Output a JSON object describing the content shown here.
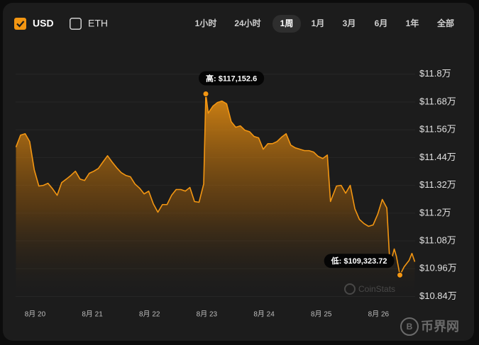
{
  "controls": {
    "currencies": [
      {
        "label": "USD",
        "checked": true
      },
      {
        "label": "ETH",
        "checked": false
      }
    ],
    "ranges": [
      {
        "label": "1小时",
        "selected": false
      },
      {
        "label": "24小时",
        "selected": false
      },
      {
        "label": "1周",
        "selected": true
      },
      {
        "label": "1月",
        "selected": false
      },
      {
        "label": "3月",
        "selected": false
      },
      {
        "label": "6月",
        "selected": false
      },
      {
        "label": "1年",
        "selected": false
      },
      {
        "label": "全部",
        "selected": false
      }
    ]
  },
  "watermarks": [
    "CoinStats",
    "币界网"
  ],
  "chart_data": {
    "type": "line",
    "grid": true,
    "annotations": {
      "high": "高: $117,152.6",
      "low": "低: $109,323.72"
    },
    "xlim": [
      19.66,
      26.64
    ],
    "xticks": [
      {
        "value": 20,
        "label": "8月 20"
      },
      {
        "value": 21,
        "label": "8月 21"
      },
      {
        "value": 22,
        "label": "8月 22"
      },
      {
        "value": 23,
        "label": "8月 23"
      },
      {
        "value": 24,
        "label": "8月 24"
      },
      {
        "value": 25,
        "label": "8月 25"
      },
      {
        "value": 26,
        "label": "8月 26"
      }
    ],
    "ylim": [
      10.82,
      11.83
    ],
    "yticks": [
      {
        "value": 10.84,
        "label": "$10.84万"
      },
      {
        "value": 10.96,
        "label": "$10.96万"
      },
      {
        "value": 11.08,
        "label": "$11.08万"
      },
      {
        "value": 11.2,
        "label": "$11.2万"
      },
      {
        "value": 11.32,
        "label": "$11.32万"
      },
      {
        "value": 11.44,
        "label": "$11.44万"
      },
      {
        "value": 11.56,
        "label": "$11.56万"
      },
      {
        "value": 11.68,
        "label": "$11.68万"
      },
      {
        "value": 11.8,
        "label": "$11.8万"
      }
    ],
    "x": [
      19.666,
      19.746,
      19.827,
      19.906,
      19.986,
      20.066,
      20.146,
      20.225,
      20.306,
      20.386,
      20.465,
      20.546,
      20.626,
      20.705,
      20.786,
      20.865,
      20.946,
      21.026,
      21.105,
      21.186,
      21.266,
      21.345,
      21.426,
      21.505,
      21.585,
      21.666,
      21.745,
      21.825,
      21.906,
      21.985,
      22.066,
      22.145,
      22.225,
      22.306,
      22.385,
      22.465,
      22.546,
      22.625,
      22.705,
      22.785,
      22.865,
      22.946,
      22.983,
      23.025,
      23.106,
      23.187,
      23.266,
      23.347,
      23.427,
      23.506,
      23.587,
      23.666,
      23.746,
      23.827,
      23.906,
      23.986,
      24.067,
      24.146,
      24.226,
      24.306,
      24.386,
      24.467,
      24.546,
      24.626,
      24.707,
      24.786,
      24.866,
      24.946,
      25.026,
      25.106,
      25.161,
      25.266,
      25.347,
      25.426,
      25.506,
      25.587,
      25.666,
      25.746,
      25.825,
      25.906,
      25.986,
      26.066,
      26.146,
      26.2,
      26.275,
      26.312,
      26.374,
      26.448,
      26.535,
      26.584,
      26.634
    ],
    "series": [
      {
        "name": "USD",
        "color": "#f39612",
        "values": [
          11.485,
          11.537,
          11.543,
          11.509,
          11.387,
          11.317,
          11.32,
          11.329,
          11.305,
          11.277,
          11.332,
          11.347,
          11.363,
          11.381,
          11.347,
          11.341,
          11.372,
          11.381,
          11.393,
          11.421,
          11.448,
          11.421,
          11.396,
          11.375,
          11.363,
          11.357,
          11.326,
          11.308,
          11.283,
          11.295,
          11.24,
          11.204,
          11.237,
          11.237,
          11.277,
          11.302,
          11.302,
          11.295,
          11.311,
          11.25,
          11.247,
          11.326,
          11.71526,
          11.632,
          11.662,
          11.678,
          11.684,
          11.672,
          11.595,
          11.571,
          11.577,
          11.558,
          11.552,
          11.531,
          11.525,
          11.476,
          11.5,
          11.5,
          11.509,
          11.528,
          11.543,
          11.494,
          11.482,
          11.476,
          11.47,
          11.47,
          11.464,
          11.445,
          11.436,
          11.451,
          11.25,
          11.317,
          11.32,
          11.286,
          11.32,
          11.219,
          11.173,
          11.155,
          11.143,
          11.149,
          11.195,
          11.259,
          11.222,
          10.974,
          11.045,
          11.014,
          10.932372,
          10.968,
          10.996,
          11.026,
          10.99
        ]
      }
    ]
  }
}
